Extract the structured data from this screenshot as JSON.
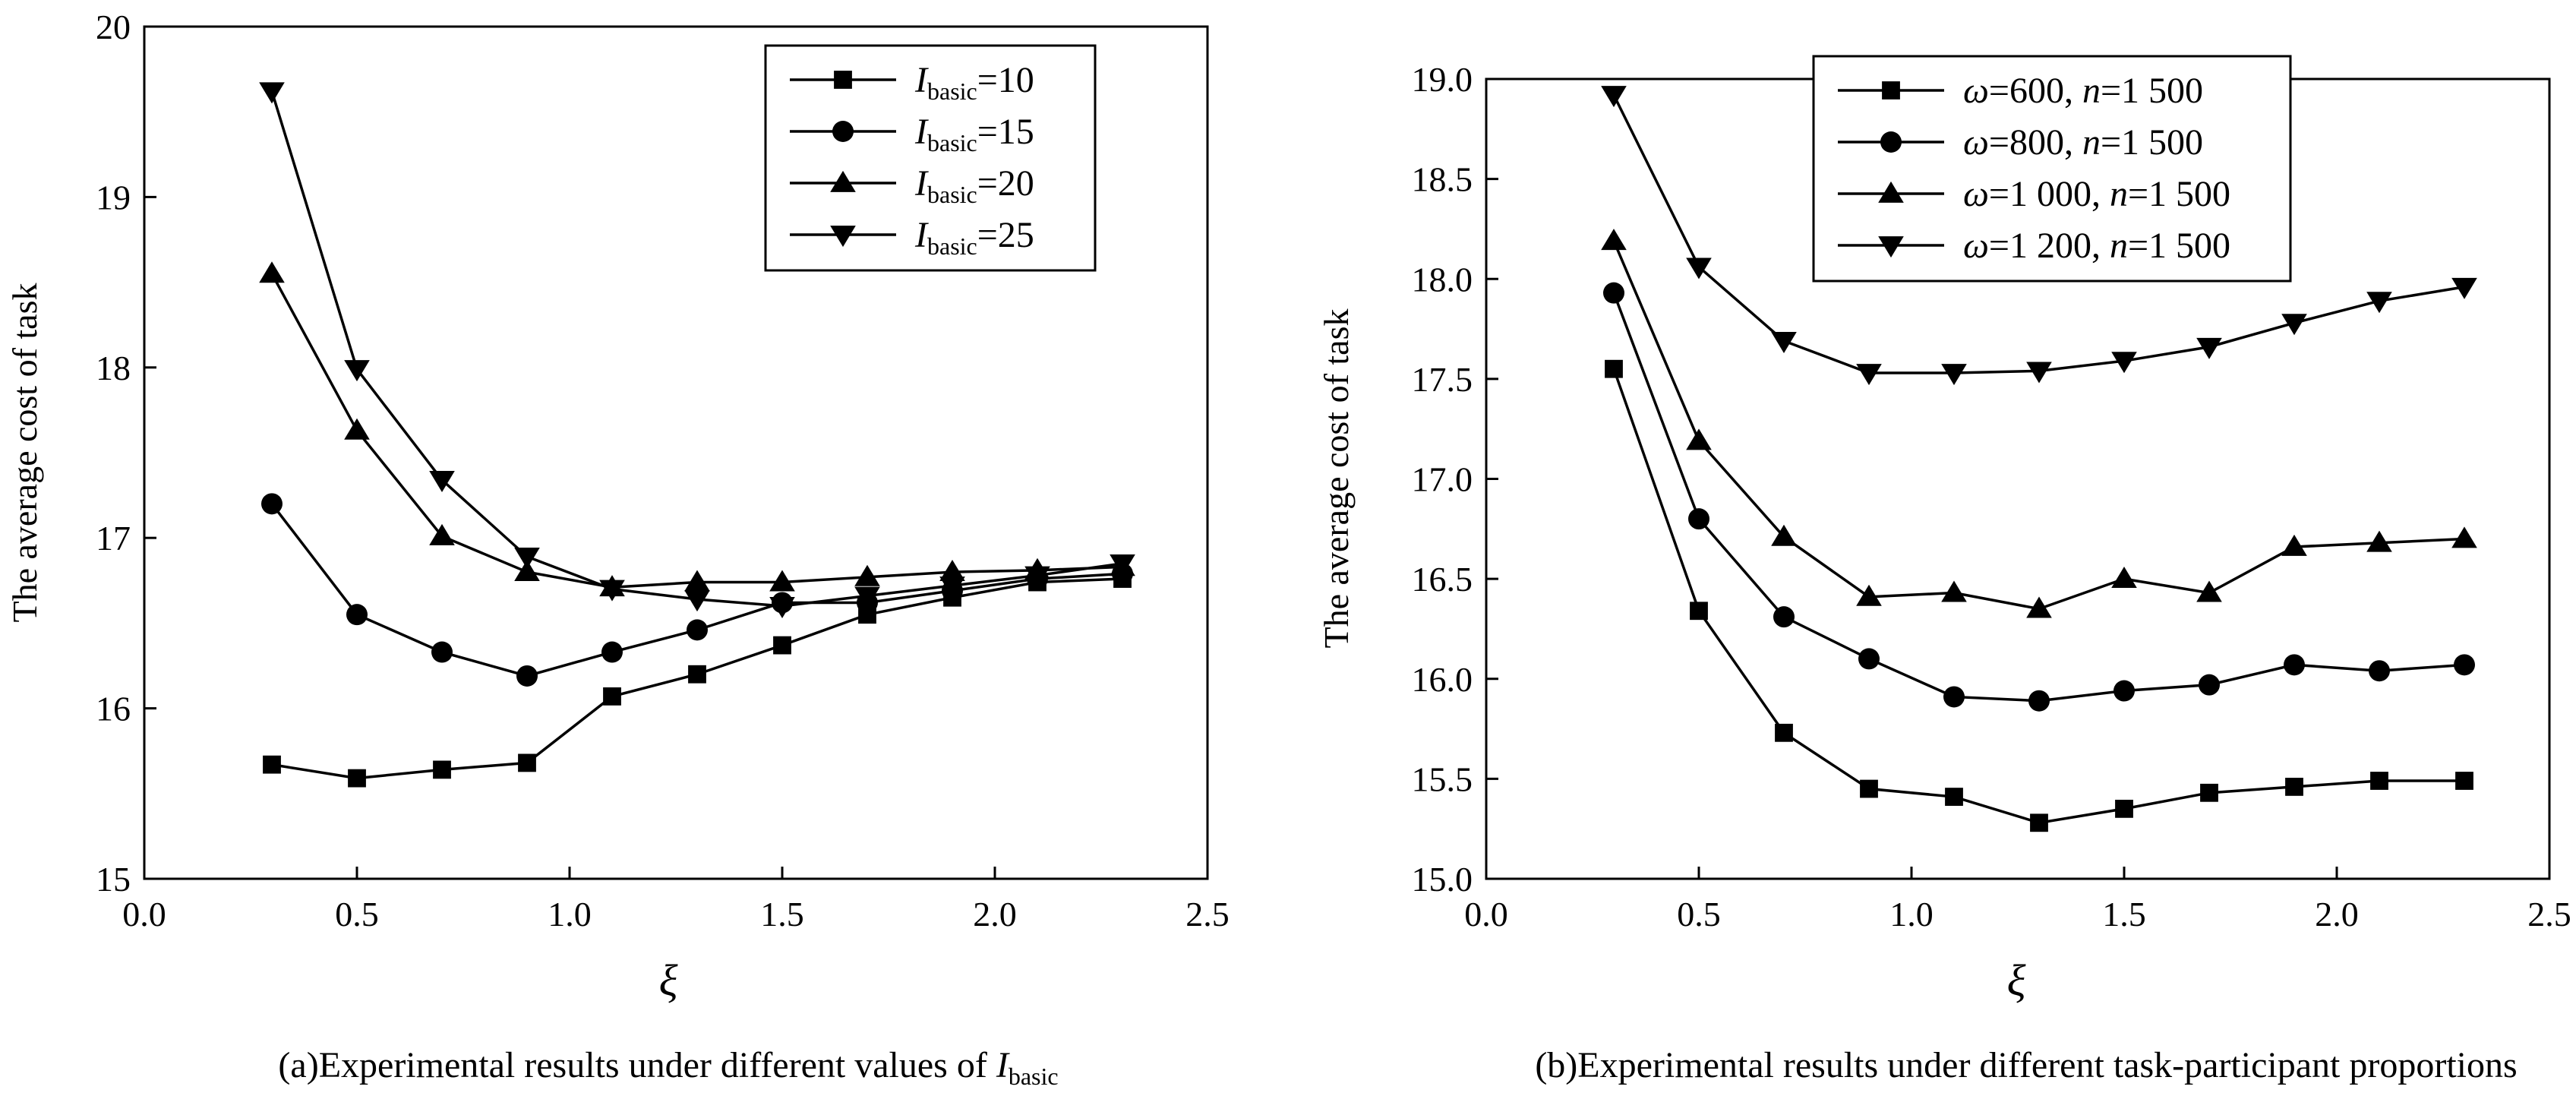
{
  "chart_data": [
    {
      "type": "line",
      "panel": "a",
      "caption_prefix": "(a)Experimental results under different values of ",
      "caption_var": "I",
      "caption_sub": "basic",
      "xlabel": "ξ",
      "ylabel": "The average cost of task",
      "xlim": [
        0.0,
        2.5
      ],
      "ylim": [
        15,
        20
      ],
      "xticks": [
        "0.0",
        "0.5",
        "1.0",
        "1.5",
        "2.0",
        "2.5"
      ],
      "yticks": [
        "15",
        "16",
        "17",
        "18",
        "19",
        "20"
      ],
      "legend_position": "top-right",
      "x": [
        0.3,
        0.5,
        0.7,
        0.9,
        1.1,
        1.3,
        1.5,
        1.7,
        1.9,
        2.1,
        2.3
      ],
      "series": [
        {
          "label_var": "I",
          "label_sub": "basic",
          "label_rest": "=10",
          "marker": "square",
          "values": [
            15.67,
            15.59,
            15.64,
            15.68,
            16.07,
            16.2,
            16.37,
            16.55,
            16.65,
            16.74,
            16.76
          ]
        },
        {
          "label_var": "I",
          "label_sub": "basic",
          "label_rest": "=15",
          "marker": "circle",
          "values": [
            17.2,
            16.55,
            16.33,
            16.19,
            16.33,
            16.46,
            16.62,
            16.62,
            16.69,
            16.76,
            16.79
          ]
        },
        {
          "label_var": "I",
          "label_sub": "basic",
          "label_rest": "=20",
          "marker": "triangle-up",
          "values": [
            18.55,
            17.63,
            17.01,
            16.8,
            16.71,
            16.74,
            16.74,
            16.77,
            16.8,
            16.81,
            16.83
          ]
        },
        {
          "label_var": "I",
          "label_sub": "basic",
          "label_rest": "=25",
          "marker": "triangle-down",
          "values": [
            19.62,
            17.99,
            17.34,
            16.89,
            16.7,
            16.64,
            16.6,
            16.66,
            16.72,
            16.78,
            16.85
          ]
        }
      ]
    },
    {
      "type": "line",
      "panel": "b",
      "caption_prefix": "(b)Experimental results under different task-participant proportions",
      "caption_var": "",
      "caption_sub": "",
      "xlabel": "ξ",
      "ylabel": "The average cost of task",
      "xlim": [
        0.0,
        2.5
      ],
      "ylim": [
        15.0,
        19.0
      ],
      "xticks": [
        "0.0",
        "0.5",
        "1.0",
        "1.5",
        "2.0",
        "2.5"
      ],
      "yticks": [
        "15.0",
        "15.5",
        "16.0",
        "16.5",
        "17.0",
        "17.5",
        "18.0",
        "18.5",
        "19.0"
      ],
      "legend_position": "top-right",
      "x": [
        0.3,
        0.5,
        0.7,
        0.9,
        1.1,
        1.3,
        1.5,
        1.7,
        1.9,
        2.1,
        2.3
      ],
      "series": [
        {
          "label_omega": "ω",
          "label_a": "=600, ",
          "label_n": "n",
          "label_b": "=1 500",
          "marker": "square",
          "values": [
            17.55,
            16.34,
            15.73,
            15.45,
            15.41,
            15.28,
            15.35,
            15.43,
            15.46,
            15.49,
            15.49
          ]
        },
        {
          "label_omega": "ω",
          "label_a": "=800, ",
          "label_n": "n",
          "label_b": "=1 500",
          "marker": "circle",
          "values": [
            17.93,
            16.8,
            16.31,
            16.1,
            15.91,
            15.89,
            15.94,
            15.97,
            16.07,
            16.04,
            16.07
          ]
        },
        {
          "label_omega": "ω",
          "label_a": "=1 000, ",
          "label_n": "n",
          "label_b": "=1 500",
          "marker": "triangle-up",
          "values": [
            18.19,
            17.19,
            16.71,
            16.41,
            16.43,
            16.35,
            16.5,
            16.43,
            16.66,
            16.68,
            16.7
          ]
        },
        {
          "label_omega": "ω",
          "label_a": "=1 200, ",
          "label_n": "n",
          "label_b": "=1 500",
          "marker": "triangle-down",
          "values": [
            18.92,
            18.06,
            17.69,
            17.53,
            17.53,
            17.54,
            17.59,
            17.66,
            17.78,
            17.89,
            17.96
          ]
        }
      ]
    }
  ]
}
